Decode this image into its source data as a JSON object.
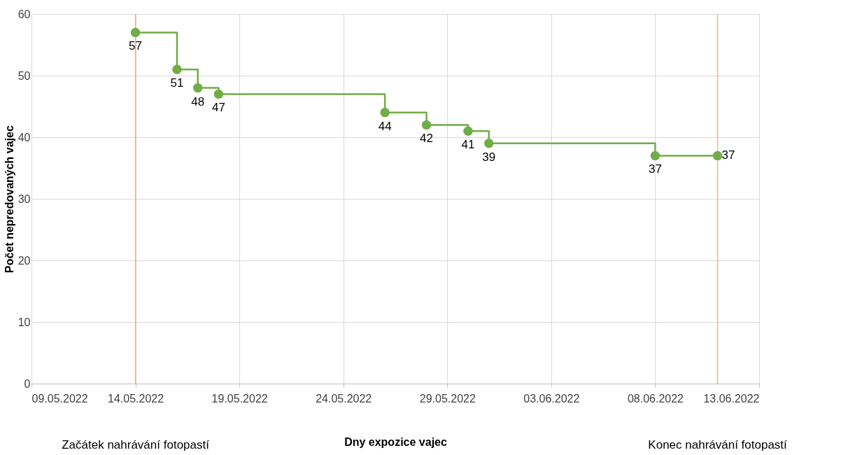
{
  "chart_data": {
    "type": "step",
    "xlabel": "Dny expozice vajec",
    "ylabel": "Počet nepredovaných vajec",
    "x": [
      "2022-05-14",
      "2022-05-16",
      "2022-05-17",
      "2022-05-18",
      "2022-05-26",
      "2022-05-28",
      "2022-05-30",
      "2022-05-31",
      "2022-06-08",
      "2022-06-11"
    ],
    "series": [
      {
        "color": "#70ad47",
        "values": [
          57,
          51,
          48,
          47,
          44,
          42,
          41,
          39,
          37,
          37
        ]
      }
    ],
    "data_labels": true,
    "marker": "circle",
    "grid": true,
    "xlim": [
      "2022-05-09",
      "2022-06-13"
    ],
    "xticks": [
      {
        "value": "2022-05-09",
        "label": "09.05.2022"
      },
      {
        "value": "2022-05-14",
        "label": "14.05.2022"
      },
      {
        "value": "2022-05-19",
        "label": "19.05.2022"
      },
      {
        "value": "2022-05-24",
        "label": "24.05.2022"
      },
      {
        "value": "2022-05-29",
        "label": "29.05.2022"
      },
      {
        "value": "2022-06-03",
        "label": "03.06.2022"
      },
      {
        "value": "2022-06-08",
        "label": "08.06.2022"
      },
      {
        "value": "2022-06-13",
        "label": "13.06.2022"
      }
    ],
    "ylim": [
      0,
      60
    ],
    "yticks": [
      0,
      10,
      20,
      30,
      40,
      50,
      60
    ],
    "ref_lines": [
      {
        "axis": "x",
        "value": "2022-05-14",
        "color": "#f4b183"
      },
      {
        "axis": "x",
        "value": "2022-06-11",
        "color": "#f4b183"
      }
    ],
    "annotations": [
      "Začátek nahrávání fotopastí",
      "Konec nahrávání fotopastí"
    ]
  }
}
